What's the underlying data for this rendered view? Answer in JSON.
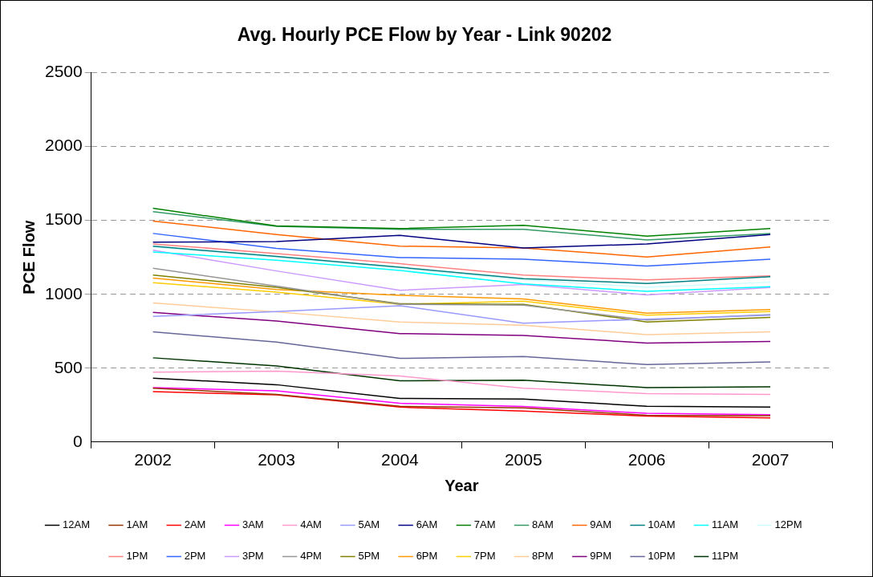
{
  "chart_data": {
    "type": "line",
    "title": "Avg. Hourly PCE Flow by Year - Link 90202",
    "xlabel": "Year",
    "ylabel": "PCE Flow",
    "categories": [
      "2002",
      "2003",
      "2004",
      "2005",
      "2006",
      "2007"
    ],
    "ylim": [
      0,
      2500
    ],
    "yticks": [
      0,
      500,
      1000,
      1500,
      2000,
      2500
    ],
    "grid": "y",
    "legend": "bottom",
    "marker": "none",
    "line_style": "solid",
    "series": [
      {
        "name": "12AM",
        "color": "#000000",
        "values": [
          432,
          388,
          295,
          291,
          242,
          236
        ]
      },
      {
        "name": "1AM",
        "color": "#993300",
        "values": [
          364,
          322,
          242,
          231,
          181,
          178
        ]
      },
      {
        "name": "2AM",
        "color": "#ff0000",
        "values": [
          341,
          319,
          236,
          209,
          176,
          163
        ]
      },
      {
        "name": "3AM",
        "color": "#ff00ff",
        "values": [
          368,
          346,
          262,
          240,
          194,
          185
        ]
      },
      {
        "name": "4AM",
        "color": "#ff99cc",
        "values": [
          473,
          480,
          447,
          364,
          328,
          322
        ]
      },
      {
        "name": "5AM",
        "color": "#9999ff",
        "values": [
          850,
          883,
          923,
          804,
          832,
          859
        ]
      },
      {
        "name": "6AM",
        "color": "#000080",
        "values": [
          1353,
          1357,
          1399,
          1313,
          1341,
          1405
        ]
      },
      {
        "name": "7AM",
        "color": "#008000",
        "values": [
          1582,
          1463,
          1445,
          1467,
          1394,
          1445
        ]
      },
      {
        "name": "8AM",
        "color": "#339966",
        "values": [
          1560,
          1460,
          1440,
          1440,
          1368,
          1412
        ]
      },
      {
        "name": "9AM",
        "color": "#ff6600",
        "values": [
          1496,
          1405,
          1326,
          1313,
          1253,
          1320
        ]
      },
      {
        "name": "10AM",
        "color": "#008080",
        "values": [
          1326,
          1256,
          1183,
          1106,
          1073,
          1119
        ]
      },
      {
        "name": "11AM",
        "color": "#00ffff",
        "values": [
          1286,
          1231,
          1161,
          1070,
          1020,
          1051
        ]
      },
      {
        "name": "12PM",
        "color": "#ccffff",
        "values": [
          1320,
          1250,
          1175,
          1097,
          1048,
          1082
        ]
      },
      {
        "name": "1PM",
        "color": "#ff8080",
        "values": [
          1341,
          1276,
          1207,
          1130,
          1097,
          1125
        ]
      },
      {
        "name": "2PM",
        "color": "#3366ff",
        "values": [
          1412,
          1311,
          1249,
          1238,
          1192,
          1238
        ]
      },
      {
        "name": "3PM",
        "color": "#cc99ff",
        "values": [
          1298,
          1158,
          1027,
          1066,
          996,
          1046
        ]
      },
      {
        "name": "4PM",
        "color": "#969696",
        "values": [
          1176,
          1055,
          932,
          927,
          826,
          862
        ]
      },
      {
        "name": "5PM",
        "color": "#808000",
        "values": [
          1130,
          1048,
          936,
          932,
          813,
          844
        ]
      },
      {
        "name": "6PM",
        "color": "#ff9900",
        "values": [
          1110,
          1033,
          993,
          969,
          872,
          897
        ]
      },
      {
        "name": "7PM",
        "color": "#ffcc00",
        "values": [
          1079,
          1015,
          932,
          954,
          859,
          883
        ]
      },
      {
        "name": "8PM",
        "color": "#ffcc99",
        "values": [
          941,
          881,
          813,
          791,
          727,
          746
        ]
      },
      {
        "name": "9PM",
        "color": "#800080",
        "values": [
          877,
          819,
          734,
          722,
          670,
          681
        ]
      },
      {
        "name": "10PM",
        "color": "#666699",
        "values": [
          746,
          676,
          566,
          579,
          524,
          542
        ]
      },
      {
        "name": "11PM",
        "color": "#003300",
        "values": [
          570,
          515,
          414,
          419,
          368,
          374
        ]
      }
    ]
  }
}
